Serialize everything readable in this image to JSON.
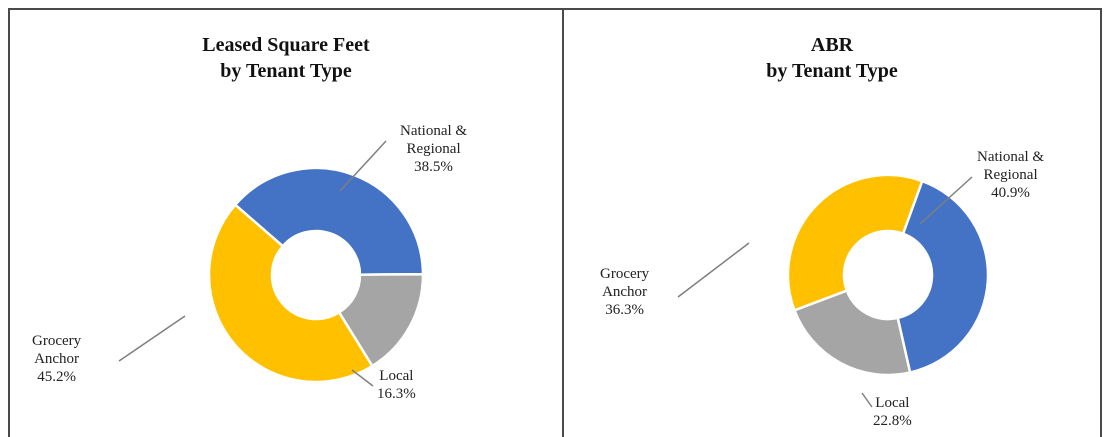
{
  "chart_data": [
    {
      "type": "pie",
      "donut": true,
      "title": [
        "Leased Square Feet",
        "by Tenant Type"
      ],
      "slices": [
        {
          "label": [
            "National &",
            "Regional"
          ],
          "value": 38.5,
          "display": "38.5%",
          "color": "#4472c4"
        },
        {
          "label": [
            "Local"
          ],
          "value": 16.3,
          "display": "16.3%",
          "color": "#a5a5a5"
        },
        {
          "label": [
            "Grocery",
            "Anchor"
          ],
          "value": 45.2,
          "display": "45.2%",
          "color": "#ffc000"
        }
      ]
    },
    {
      "type": "pie",
      "donut": true,
      "title": [
        "ABR",
        "by Tenant Type"
      ],
      "slices": [
        {
          "label": [
            "National &",
            "Regional"
          ],
          "value": 40.9,
          "display": "40.9%",
          "color": "#4472c4"
        },
        {
          "label": [
            "Local"
          ],
          "value": 22.8,
          "display": "22.8%",
          "color": "#a5a5a5"
        },
        {
          "label": [
            "Grocery",
            "Anchor"
          ],
          "value": 36.3,
          "display": "36.3%",
          "color": "#ffc000"
        }
      ]
    }
  ]
}
